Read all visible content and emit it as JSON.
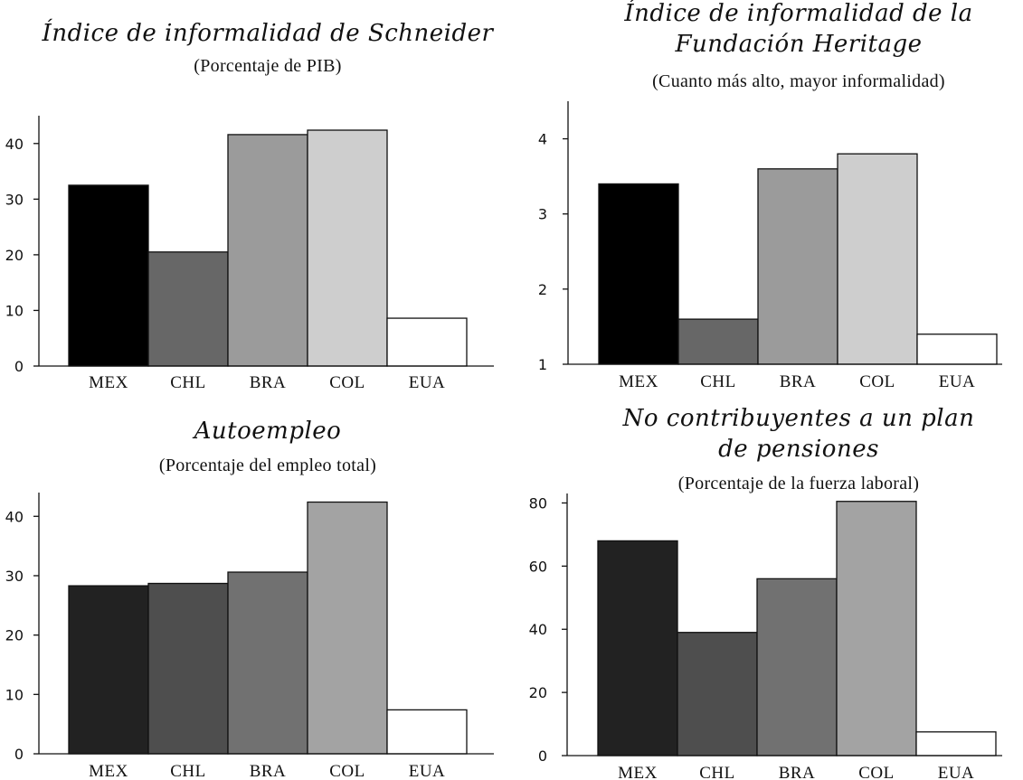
{
  "chart_data": [
    {
      "type": "bar",
      "title_lines": [
        "Índice de informalidad de Schneider"
      ],
      "subtitle": "(Porcentaje de PIB)",
      "categories": [
        "MEX",
        "CHL",
        "BRA",
        "COL",
        "EUA"
      ],
      "values": [
        32.5,
        20.5,
        41.6,
        42.4,
        8.6
      ],
      "colors": [
        "#000000",
        "#676767",
        "#9b9b9b",
        "#cecece",
        "#ffffff"
      ],
      "ylim": [
        0,
        45
      ],
      "yticks": [
        0,
        10,
        20,
        30,
        40
      ],
      "xlabel": "",
      "ylabel": ""
    },
    {
      "type": "bar",
      "title_lines": [
        "Índice de informalidad de la",
        "Fundación Heritage"
      ],
      "subtitle": "(Cuanto más alto, mayor informalidad)",
      "categories": [
        "MEX",
        "CHL",
        "BRA",
        "COL",
        "EUA"
      ],
      "values": [
        3.4,
        1.6,
        3.6,
        3.8,
        1.4
      ],
      "colors": [
        "#000000",
        "#676767",
        "#9b9b9b",
        "#cecece",
        "#ffffff"
      ],
      "ylim": [
        1,
        4.5
      ],
      "yticks": [
        1,
        2,
        3,
        4
      ],
      "xlabel": "",
      "ylabel": ""
    },
    {
      "type": "bar",
      "title_lines": [
        "Autoempleo"
      ],
      "subtitle": "(Porcentaje del empleo total)",
      "categories": [
        "MEX",
        "CHL",
        "BRA",
        "COL",
        "EUA"
      ],
      "values": [
        28.3,
        28.7,
        30.6,
        42.4,
        7.4
      ],
      "colors": [
        "#222222",
        "#4e4e4e",
        "#717171",
        "#a3a3a3",
        "#ffffff"
      ],
      "ylim": [
        0,
        44
      ],
      "yticks": [
        0,
        10,
        20,
        30,
        40
      ],
      "xlabel": "",
      "ylabel": ""
    },
    {
      "type": "bar",
      "title_lines": [
        "No contribuyentes a un plan",
        "de pensiones"
      ],
      "subtitle": "(Porcentaje de la fuerza laboral)",
      "categories": [
        "MEX",
        "CHL",
        "BRA",
        "COL",
        "EUA"
      ],
      "values": [
        68,
        39,
        56,
        80.5,
        7.5
      ],
      "colors": [
        "#222222",
        "#4e4e4e",
        "#717171",
        "#a3a3a3",
        "#ffffff"
      ],
      "ylim": [
        0,
        83
      ],
      "yticks": [
        0,
        20,
        40,
        60,
        80
      ],
      "xlabel": "",
      "ylabel": ""
    }
  ]
}
